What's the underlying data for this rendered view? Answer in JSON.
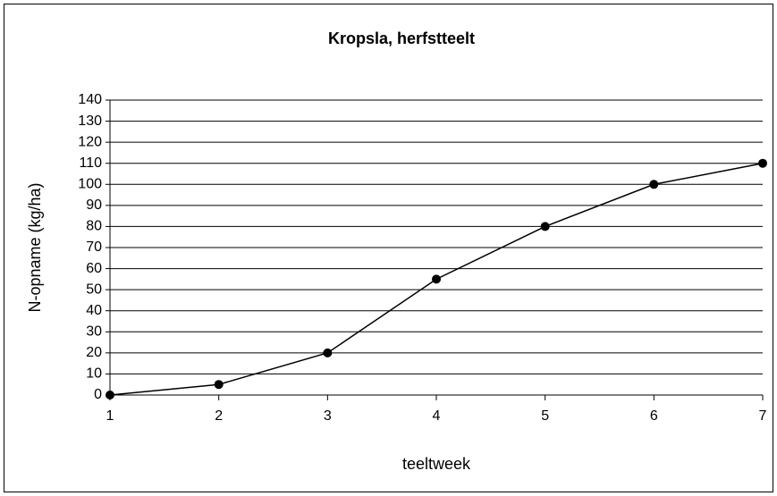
{
  "chart_data": {
    "type": "line",
    "title": "Kropsla, herfstteelt",
    "xlabel": "teeltweek",
    "ylabel": "N-opname  (kg/ha)",
    "x": [
      1,
      2,
      3,
      4,
      5,
      6,
      7
    ],
    "series": [
      {
        "color": "#000000",
        "values": [
          0,
          5,
          20,
          55,
          80,
          100,
          110
        ]
      }
    ],
    "xlim": [
      1,
      7
    ],
    "xticks": [
      1,
      2,
      3,
      4,
      5,
      6,
      7
    ],
    "ylim": [
      0,
      140
    ],
    "yticks": [
      0,
      10,
      20,
      30,
      40,
      50,
      60,
      70,
      80,
      90,
      100,
      110,
      120,
      130,
      140
    ],
    "grid": true
  }
}
